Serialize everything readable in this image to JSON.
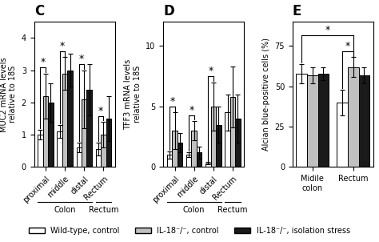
{
  "chart_data": [
    {
      "type": "bar",
      "title": "C",
      "y_label": "MUC2 mRNA levels\nrelative to 18S",
      "categories": [
        "proximal",
        "middle",
        "distal",
        "Rectum"
      ],
      "series": [
        {
          "name": "Wild-type, control",
          "color": "#ffffff",
          "values": [
            1.0,
            1.1,
            0.6,
            0.55
          ],
          "errors": [
            0.15,
            0.2,
            0.15,
            0.2
          ]
        },
        {
          "name": "IL-18⁻/⁻, control",
          "color": "#c0c0c0",
          "values": [
            2.2,
            2.9,
            2.1,
            1.0
          ],
          "errors": [
            0.7,
            0.5,
            0.9,
            0.4
          ]
        },
        {
          "name": "IL-18⁻/⁻, isolation stress",
          "color": "#1a1a1a",
          "values": [
            2.0,
            3.0,
            2.4,
            1.5
          ],
          "errors": [
            0.6,
            0.5,
            0.8,
            0.7
          ]
        }
      ],
      "ylim": [
        0,
        4.5
      ],
      "yticks": [
        0,
        1,
        2,
        3,
        4
      ],
      "category_groups": [
        {
          "label": "Colon",
          "categories": [
            "proximal",
            "middle",
            "distal"
          ]
        },
        {
          "label": "Rectum",
          "categories": [
            "Rectum"
          ]
        }
      ],
      "annotations": [
        {
          "text": "*",
          "from": {
            "series": "Wild-type, control",
            "category": "proximal"
          },
          "to": {
            "series": "IL-18⁻/⁻, control",
            "category": "proximal"
          }
        },
        {
          "text": "*",
          "from": {
            "series": "Wild-type, control",
            "category": "middle"
          },
          "to": {
            "series": "IL-18⁻/⁻, control",
            "category": "middle"
          }
        },
        {
          "text": "*",
          "from": {
            "series": "Wild-type, control",
            "category": "distal"
          },
          "to": {
            "series": "IL-18⁻/⁻, control",
            "category": "distal"
          }
        },
        {
          "text": "*",
          "from": {
            "series": "Wild-type, control",
            "category": "Rectum"
          },
          "to": {
            "series": "IL-18⁻/⁻, control",
            "category": "Rectum"
          }
        }
      ],
      "legend": "lower center"
    },
    {
      "type": "bar",
      "title": "D",
      "y_label": "TFF3 mRNA levels\nrelative to 18S",
      "categories": [
        "proximal",
        "middle",
        "distal",
        "Rectum"
      ],
      "series": [
        {
          "name": "Wild-type, control",
          "color": "#ffffff",
          "values": [
            1.0,
            1.0,
            0.3,
            4.5
          ],
          "errors": [
            0.3,
            0.2,
            0.1,
            1.5
          ]
        },
        {
          "name": "IL-18⁻/⁻, control",
          "color": "#c0c0c0",
          "values": [
            3.0,
            3.0,
            5.0,
            5.8
          ],
          "errors": [
            1.5,
            0.8,
            2.0,
            2.5
          ]
        },
        {
          "name": "IL-18⁻/⁻, isolation stress",
          "color": "#1a1a1a",
          "values": [
            2.0,
            1.2,
            3.5,
            4.0
          ],
          "errors": [
            0.8,
            0.5,
            1.5,
            2.0
          ]
        }
      ],
      "ylim": [
        0,
        12
      ],
      "yticks": [
        0,
        5,
        10
      ],
      "category_groups": [
        {
          "label": "Colon",
          "categories": [
            "proximal",
            "middle",
            "distal"
          ]
        },
        {
          "label": "Rectum",
          "categories": [
            "Rectum"
          ]
        }
      ],
      "annotations": [
        {
          "text": "*",
          "from": {
            "series": "Wild-type, control",
            "category": "proximal"
          },
          "to": {
            "series": "IL-18⁻/⁻, control",
            "category": "proximal"
          }
        },
        {
          "text": "*",
          "from": {
            "series": "Wild-type, control",
            "category": "middle"
          },
          "to": {
            "series": "IL-18⁻/⁻, control",
            "category": "middle"
          }
        },
        {
          "text": "*",
          "from": {
            "series": "Wild-type, control",
            "category": "distal"
          },
          "to": {
            "series": "IL-18⁻/⁻, control",
            "category": "distal"
          }
        }
      ]
    },
    {
      "type": "bar",
      "title": "E",
      "y_label": "Alcian blue-positive cells (%)",
      "categories": [
        "Midile\ncolon",
        "Rectum"
      ],
      "series": [
        {
          "name": "Wild-type, control",
          "color": "#ffffff",
          "values": [
            58,
            40
          ],
          "errors": [
            6,
            8
          ]
        },
        {
          "name": "IL-18⁻/⁻, control",
          "color": "#c0c0c0",
          "values": [
            57,
            62
          ],
          "errors": [
            5,
            6
          ]
        },
        {
          "name": "IL-18⁻/⁻, isolation stress",
          "color": "#1a1a1a",
          "values": [
            58,
            57
          ],
          "errors": [
            4,
            5
          ]
        }
      ],
      "ylim": [
        0,
        90
      ],
      "yticks": [
        0,
        25,
        50,
        75
      ],
      "annotations": [
        {
          "text": "*",
          "from": {
            "series": "Wild-type, control",
            "category": "Midile\ncolon"
          },
          "to": {
            "series": "IL-18⁻/⁻, control",
            "category": "Rectum"
          }
        },
        {
          "text": "*",
          "from": {
            "series": "Wild-type, control",
            "category": "Rectum"
          },
          "to": {
            "series": "IL-18⁻/⁻, control",
            "category": "Rectum"
          }
        }
      ]
    }
  ]
}
